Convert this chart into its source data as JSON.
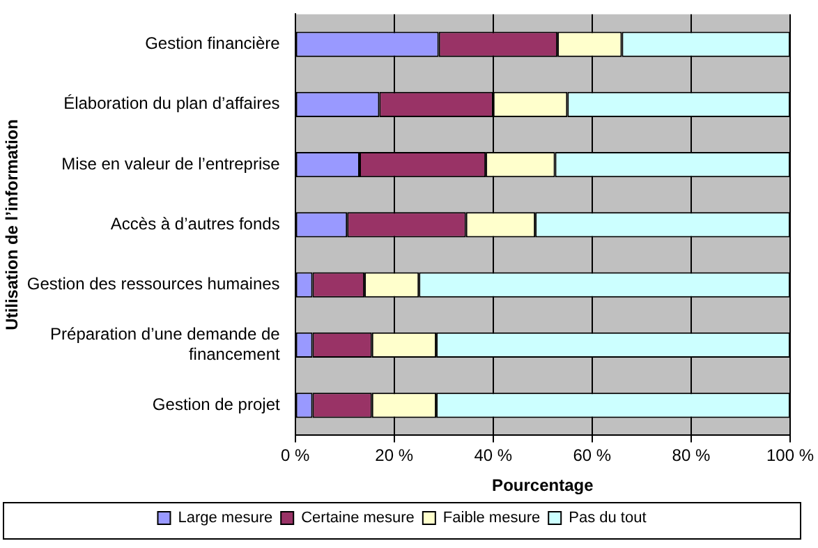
{
  "chart_data": {
    "type": "bar",
    "orientation": "horizontal",
    "stacked": true,
    "xlabel": "Pourcentage",
    "ylabel": "Utilisation de l’information",
    "categories": [
      "Gestion financière",
      "Élaboration du plan d’affaires",
      "Mise en valeur de l’entreprise",
      "Accès à d’autres fonds",
      "Gestion des ressources humaines",
      "Préparation d’une demande de financement",
      "Gestion de projet"
    ],
    "series": [
      {
        "name": "Large mesure",
        "color": "#9999ff",
        "values": [
          29,
          17,
          13,
          10.5,
          3.5,
          3.5,
          3.5
        ]
      },
      {
        "name": "Certaine mesure",
        "color": "#993366",
        "values": [
          24,
          23,
          25.5,
          24,
          10.5,
          12,
          12
        ]
      },
      {
        "name": "Faible mesure",
        "color": "#ffffcc",
        "values": [
          13,
          15,
          14,
          14,
          11,
          13,
          13
        ]
      },
      {
        "name": "Pas du tout",
        "color": "#ccffff",
        "values": [
          34,
          45,
          47.5,
          51.5,
          75,
          71.5,
          71.5
        ]
      }
    ],
    "xlim": [
      0,
      100
    ],
    "xticks": [
      {
        "value": 0,
        "label": "0 %"
      },
      {
        "value": 20,
        "label": "20 %"
      },
      {
        "value": 40,
        "label": "40 %"
      },
      {
        "value": 60,
        "label": "60 %"
      },
      {
        "value": 80,
        "label": "80 %"
      },
      {
        "value": 100,
        "label": "100 %"
      }
    ],
    "grid": "x",
    "legend": "bottom"
  }
}
